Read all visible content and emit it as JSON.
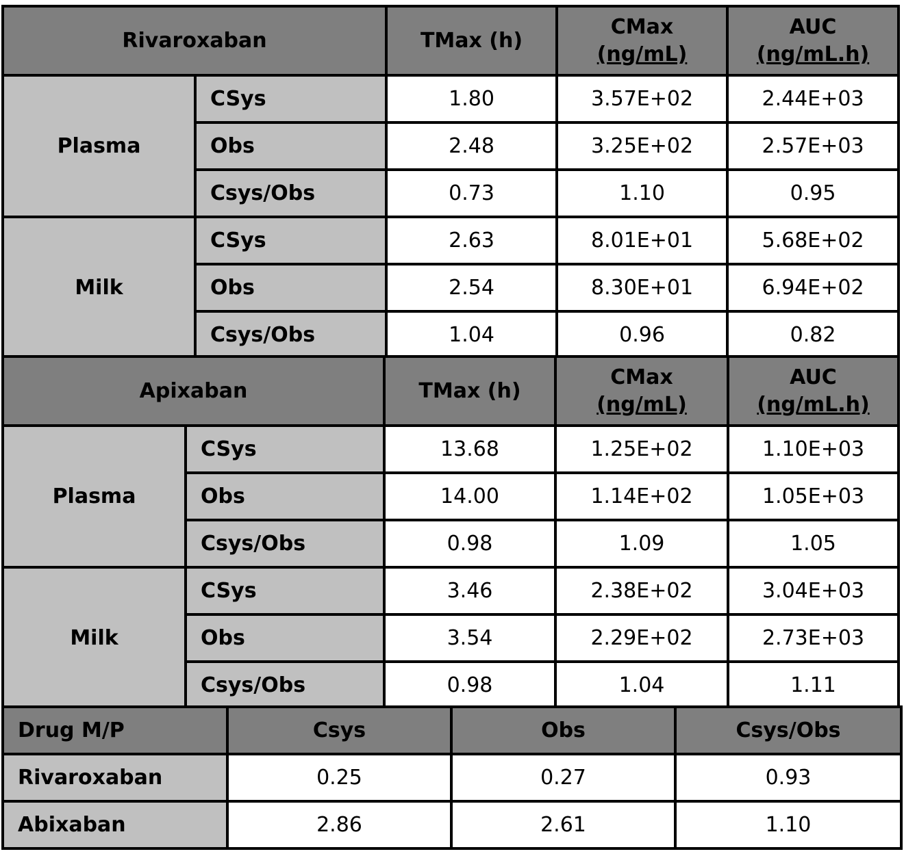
{
  "rivaroxaban_table": {
    "drug": "Rivaroxaban",
    "col_tmax": "TMax (h)",
    "col_cmax": [
      "CMax",
      "(ng/mL)"
    ],
    "col_auc": [
      "AUC",
      "(ng/mL.h)"
    ],
    "groups": [
      {
        "name": "Plasma",
        "rows": [
          {
            "label": "CSys",
            "tmax": "1.80",
            "cmax": "3.57E+02",
            "auc": "2.44E+03"
          },
          {
            "label": "Obs",
            "tmax": "2.48",
            "cmax": "3.25E+02",
            "auc": "2.57E+03"
          },
          {
            "label": "Csys/Obs",
            "tmax": "0.73",
            "cmax": "1.10",
            "auc": "0.95"
          }
        ]
      },
      {
        "name": "Milk",
        "rows": [
          {
            "label": "CSys",
            "tmax": "2.63",
            "cmax": "8.01E+01",
            "auc": "5.68E+02"
          },
          {
            "label": "Obs",
            "tmax": "2.54",
            "cmax": "8.30E+01",
            "auc": "6.94E+02"
          },
          {
            "label": "Csys/Obs",
            "tmax": "1.04",
            "cmax": "0.96",
            "auc": "0.82"
          }
        ]
      }
    ]
  },
  "apixaban_table": {
    "drug": "Apixaban",
    "col_tmax": "TMax (h)",
    "col_cmax": [
      "CMax",
      "(ng/mL)"
    ],
    "col_auc": [
      "AUC",
      "(ng/mL.h)"
    ],
    "groups": [
      {
        "name": "Plasma",
        "rows": [
          {
            "label": "CSys",
            "tmax": "13.68",
            "cmax": "1.25E+02",
            "auc": "1.10E+03"
          },
          {
            "label": "Obs",
            "tmax": "14.00",
            "cmax": "1.14E+02",
            "auc": "1.05E+03"
          },
          {
            "label": "Csys/Obs",
            "tmax": "0.98",
            "cmax": "1.09",
            "auc": "1.05"
          }
        ]
      },
      {
        "name": "Milk",
        "rows": [
          {
            "label": "CSys",
            "tmax": "3.46",
            "cmax": "2.38E+02",
            "auc": "3.04E+03"
          },
          {
            "label": "Obs",
            "tmax": "3.54",
            "cmax": "2.29E+02",
            "auc": "2.73E+03"
          },
          {
            "label": "Csys/Obs",
            "tmax": "0.98",
            "cmax": "1.04",
            "auc": "1.11"
          }
        ]
      }
    ]
  },
  "mp_table": {
    "header": [
      "Drug M/P",
      "Csys",
      "Obs",
      "Csys/Obs"
    ],
    "rows": [
      {
        "drug": "Rivaroxaban",
        "csys": "0.25",
        "obs": "0.27",
        "ratio": "0.93"
      },
      {
        "drug": "Abixaban",
        "csys": "2.86",
        "obs": "2.61",
        "ratio": "1.10"
      }
    ]
  },
  "colors": {
    "header_fill": "#7f7f7f",
    "label_fill": "#c0c0c0",
    "value_fill": "#ffffff",
    "border": "#000000"
  }
}
